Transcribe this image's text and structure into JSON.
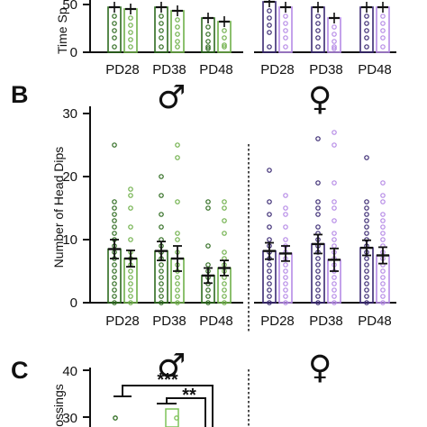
{
  "colors": {
    "male_pd28": "#2e6b1f",
    "male_pd28_light": "#6fb04a",
    "male_pd38": "#2e6b1f",
    "male_pd38_light": "#7ec35a",
    "male_pd48": "#2e6b1f",
    "male_pd48_light": "#7ec35a",
    "female_dark": "#3b2a73",
    "female_light": "#b58ae6",
    "axis": "#111111"
  },
  "panelA": {
    "ylabel": "Time Sp",
    "ytick_label": "50",
    "ytick_zero": "0",
    "groups": [
      "PD28",
      "PD38",
      "PD48",
      "PD28",
      "PD38",
      "PD48"
    ]
  },
  "panelB": {
    "letter": "B",
    "male_symbol": "♂",
    "female_symbol": "♀"
  },
  "panelC": {
    "letter": "C",
    "male_symbol": "♂",
    "female_symbol": "♀",
    "ylabel": "ossings",
    "yticks": [
      "40",
      "30"
    ],
    "sig1": "***",
    "sig2": "**"
  },
  "chart_data": {
    "type": "bar",
    "ylabel": "Number of Head Dips",
    "ylim": [
      0,
      30
    ],
    "yticks": [
      0,
      10,
      20,
      30
    ],
    "categories": [
      "PD28",
      "PD38",
      "PD48",
      "PD28",
      "PD38",
      "PD48"
    ],
    "sex": [
      "male",
      "male",
      "male",
      "female",
      "female",
      "female"
    ],
    "series": [
      {
        "values": [
          8.5,
          8.2,
          4.3,
          8.2,
          9.3,
          8.7
        ],
        "sem": [
          1.5,
          1.5,
          1.2,
          1.3,
          1.5,
          1.2
        ],
        "points": [
          [
            25,
            16,
            15,
            14,
            13,
            12,
            11,
            10,
            9,
            8,
            7,
            6,
            5,
            4,
            3,
            2,
            1,
            0
          ],
          [
            20,
            17,
            14,
            12,
            10,
            9,
            8,
            7,
            6,
            5,
            4,
            3,
            2,
            1,
            0
          ],
          [
            16,
            15,
            9,
            6,
            5,
            4,
            3,
            2,
            1,
            0
          ],
          [
            21,
            16,
            14,
            12,
            10,
            9,
            8,
            7,
            6,
            5,
            4,
            3,
            2,
            1,
            0
          ],
          [
            26,
            19,
            16,
            15,
            14,
            12,
            11,
            10,
            9,
            8,
            7,
            6,
            5,
            4,
            3,
            2,
            1,
            0
          ],
          [
            23,
            16,
            15,
            14,
            13,
            12,
            11,
            10,
            9,
            8,
            7,
            6,
            5,
            4,
            3,
            2,
            1,
            0
          ]
        ]
      },
      {
        "values": [
          7.0,
          7.0,
          5.5,
          7.8,
          6.8,
          7.5
        ],
        "sem": [
          1.3,
          2.0,
          1.2,
          1.2,
          1.8,
          1.3
        ],
        "points": [
          [
            18,
            17,
            15,
            12,
            10,
            8,
            7,
            6,
            5,
            4,
            3,
            2,
            1,
            0
          ],
          [
            25,
            23,
            16,
            11,
            10,
            8,
            6,
            5,
            4,
            3,
            2,
            1,
            0
          ],
          [
            16,
            15,
            13,
            11,
            8,
            7,
            6,
            5,
            4,
            3,
            2,
            1,
            0
          ],
          [
            17,
            15,
            14,
            12,
            10,
            9,
            8,
            7,
            6,
            5,
            4,
            3,
            2,
            1,
            0
          ],
          [
            27,
            25,
            19,
            16,
            15,
            13,
            11,
            10,
            9,
            8,
            7,
            6,
            5,
            4,
            3,
            2,
            1,
            0
          ],
          [
            19,
            17,
            16,
            14,
            13,
            12,
            11,
            10,
            9,
            8,
            7,
            6,
            5,
            4,
            3,
            2,
            1,
            0
          ]
        ]
      }
    ]
  }
}
